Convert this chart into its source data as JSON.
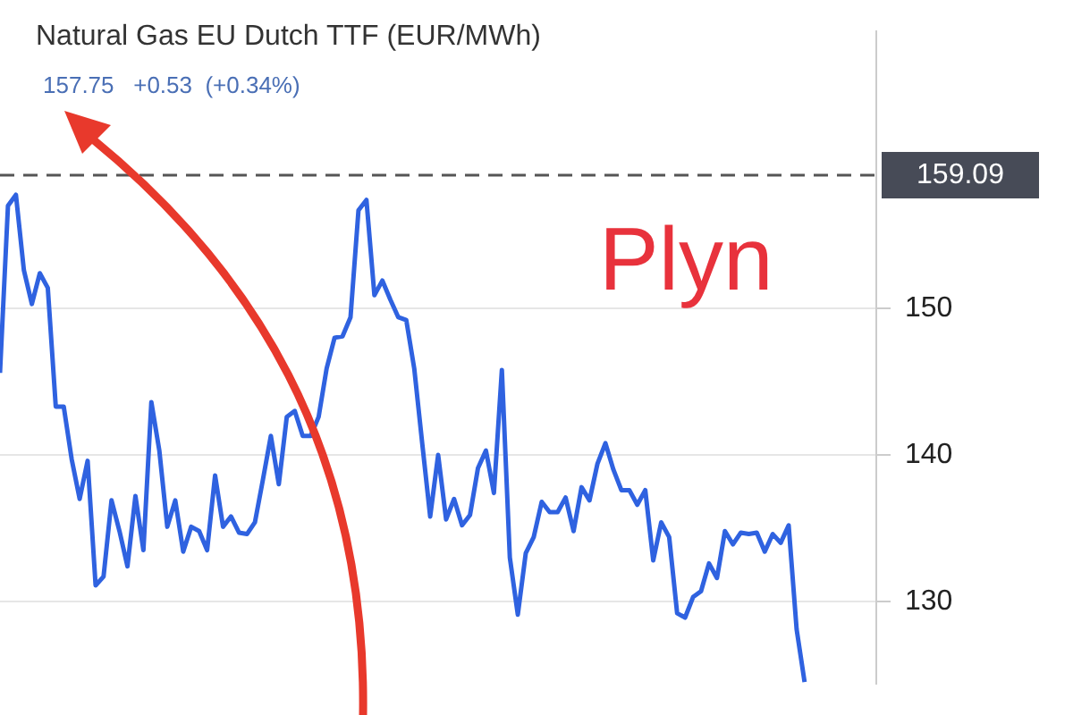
{
  "chart_data": {
    "type": "line",
    "title": "Natural Gas EU Dutch TTF (EUR/MWh)",
    "subtitle": "157.75   +0.53  (+0.34%)",
    "categories": [
      null,
      null,
      null,
      null,
      null,
      null,
      null,
      null,
      null,
      null,
      null,
      null,
      null,
      null,
      null,
      null,
      null,
      null,
      null,
      null,
      null,
      null,
      null,
      null,
      null,
      null,
      null,
      null,
      null,
      null,
      null,
      null,
      null,
      null,
      null,
      null,
      null,
      null,
      null,
      null,
      null,
      null,
      null,
      null,
      null,
      null,
      null,
      null,
      null,
      null,
      null,
      null,
      null,
      null,
      null,
      null,
      null,
      null,
      null,
      null,
      null,
      null,
      null,
      null,
      null,
      null,
      null,
      null,
      null,
      null,
      null,
      null,
      null,
      null,
      null,
      null,
      null,
      null,
      null,
      null,
      null,
      null,
      null,
      null,
      null,
      null,
      null,
      null,
      null,
      null,
      null,
      null,
      null,
      null,
      null,
      null,
      null,
      null,
      null,
      null,
      null,
      null,
      null,
      null,
      null,
      null,
      null,
      null,
      null,
      null,
      null
    ],
    "series": [
      {
        "color": "#2f62e0",
        "values": [
          145.6,
          157.0,
          157.75,
          152.6,
          150.3,
          152.4,
          151.4,
          143.3,
          143.3,
          139.7,
          137.0,
          139.6,
          131.1,
          131.7,
          136.9,
          134.8,
          132.4,
          137.2,
          133.5,
          143.6,
          140.3,
          135.1,
          136.9,
          133.4,
          135.1,
          134.8,
          133.5,
          138.6,
          135.1,
          135.8,
          134.7,
          134.6,
          135.4,
          138.3,
          141.3,
          138.0,
          142.6,
          143.0,
          141.3,
          141.3,
          142.6,
          145.9,
          148.0,
          148.1,
          149.4,
          156.7,
          157.4,
          150.9,
          151.9,
          150.6,
          149.4,
          149.2,
          145.9,
          140.8,
          135.8,
          140.0,
          135.6,
          137.0,
          135.2,
          135.9,
          139.1,
          140.3,
          137.4,
          145.8,
          133.0,
          129.1,
          133.3,
          134.4,
          136.8,
          136.1,
          136.1,
          137.1,
          134.8,
          137.8,
          136.9,
          139.4,
          140.8,
          139.0,
          137.6,
          137.6,
          136.6,
          137.6,
          132.8,
          135.4,
          134.4,
          129.2,
          128.9,
          130.3,
          130.7,
          132.6,
          131.6,
          134.8,
          133.9,
          134.7,
          134.6,
          134.7,
          133.4,
          134.6,
          134.0,
          135.2,
          128.1,
          124.5,
          null,
          null,
          null,
          null,
          null,
          null,
          null,
          null,
          null
        ]
      }
    ],
    "ylim": [
      124.4,
      168.9
    ],
    "yticks": [
      130,
      140,
      150
    ],
    "grid": "y",
    "legend": false,
    "ref_lines": [
      {
        "axis": "y",
        "value": 159.09,
        "label": "159.09",
        "color": "#555555",
        "line_style": "dashed"
      }
    ],
    "annotations": [
      "Plyn"
    ]
  }
}
